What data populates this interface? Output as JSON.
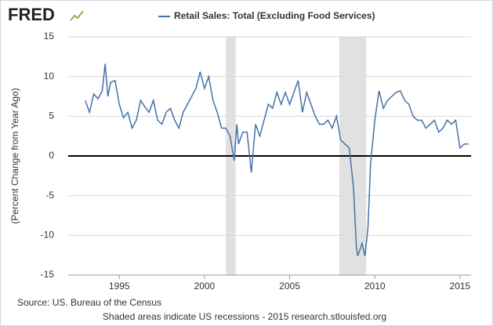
{
  "chart_data": {
    "type": "line",
    "logo": "FRED",
    "ylabel": "(Percent Change from Year Ago)",
    "source": "Source: US. Bureau of the Census",
    "footnote": "Shaded areas indicate US recessions - 2015 research.stlouisfed.org",
    "xlim": [
      1992,
      2015.65
    ],
    "xticks": [
      1995,
      2000,
      2005,
      2010,
      2015
    ],
    "ylim": [
      -15,
      15
    ],
    "yticks": [
      -15,
      -10,
      -5,
      0,
      5,
      10,
      15
    ],
    "grid": true,
    "recessions": [
      [
        2001.25,
        2001.83
      ],
      [
        2007.92,
        2009.5
      ]
    ],
    "x": [
      1993.0,
      1993.25,
      1993.5,
      1993.75,
      1994.0,
      1994.17,
      1994.33,
      1994.5,
      1994.75,
      1995.0,
      1995.25,
      1995.5,
      1995.75,
      1996.0,
      1996.25,
      1996.5,
      1996.75,
      1997.0,
      1997.25,
      1997.5,
      1997.75,
      1998.0,
      1998.25,
      1998.5,
      1998.75,
      1999.0,
      1999.25,
      1999.5,
      1999.75,
      2000.0,
      2000.25,
      2000.5,
      2000.75,
      2001.0,
      2001.25,
      2001.5,
      2001.75,
      2001.9,
      2002.0,
      2002.25,
      2002.5,
      2002.75,
      2003.0,
      2003.25,
      2003.5,
      2003.75,
      2004.0,
      2004.25,
      2004.5,
      2004.75,
      2005.0,
      2005.25,
      2005.5,
      2005.75,
      2006.0,
      2006.25,
      2006.5,
      2006.75,
      2007.0,
      2007.25,
      2007.5,
      2007.75,
      2008.0,
      2008.25,
      2008.5,
      2008.75,
      2008.92,
      2009.0,
      2009.25,
      2009.42,
      2009.6,
      2009.75,
      2010.0,
      2010.25,
      2010.5,
      2010.75,
      2011.0,
      2011.25,
      2011.5,
      2011.75,
      2012.0,
      2012.25,
      2012.5,
      2012.75,
      2013.0,
      2013.25,
      2013.5,
      2013.75,
      2014.0,
      2014.25,
      2014.5,
      2014.75,
      2015.0,
      2015.25,
      2015.5
    ],
    "series": [
      {
        "name": "Retail Sales: Total (Excluding Food Services)",
        "color": "#4572a7",
        "values": [
          7.0,
          5.5,
          7.8,
          7.2,
          8.2,
          11.6,
          7.5,
          9.3,
          9.5,
          6.5,
          4.8,
          5.5,
          3.5,
          4.5,
          7.0,
          6.2,
          5.5,
          7.0,
          4.5,
          4.0,
          5.5,
          6.0,
          4.5,
          3.5,
          5.5,
          6.5,
          7.5,
          8.5,
          10.6,
          8.5,
          10.0,
          7.0,
          5.5,
          3.5,
          3.5,
          2.5,
          -0.6,
          4.0,
          1.5,
          3.0,
          3.0,
          -2.1,
          4.0,
          2.5,
          4.5,
          6.5,
          6.0,
          8.0,
          6.5,
          8.0,
          6.5,
          8.0,
          9.5,
          5.5,
          8.0,
          6.5,
          5.0,
          4.0,
          4.0,
          4.5,
          3.5,
          5.0,
          2.0,
          1.5,
          1.0,
          -4.0,
          -11.5,
          -12.6,
          -11.0,
          -12.6,
          -9.0,
          -1.0,
          4.5,
          8.2,
          6.0,
          7.0,
          7.5,
          8.0,
          8.2,
          7.0,
          6.5,
          5.0,
          4.5,
          4.5,
          3.5,
          4.0,
          4.5,
          3.0,
          3.5,
          4.5,
          4.0,
          4.5,
          1.0,
          1.5,
          1.5
        ]
      }
    ]
  }
}
